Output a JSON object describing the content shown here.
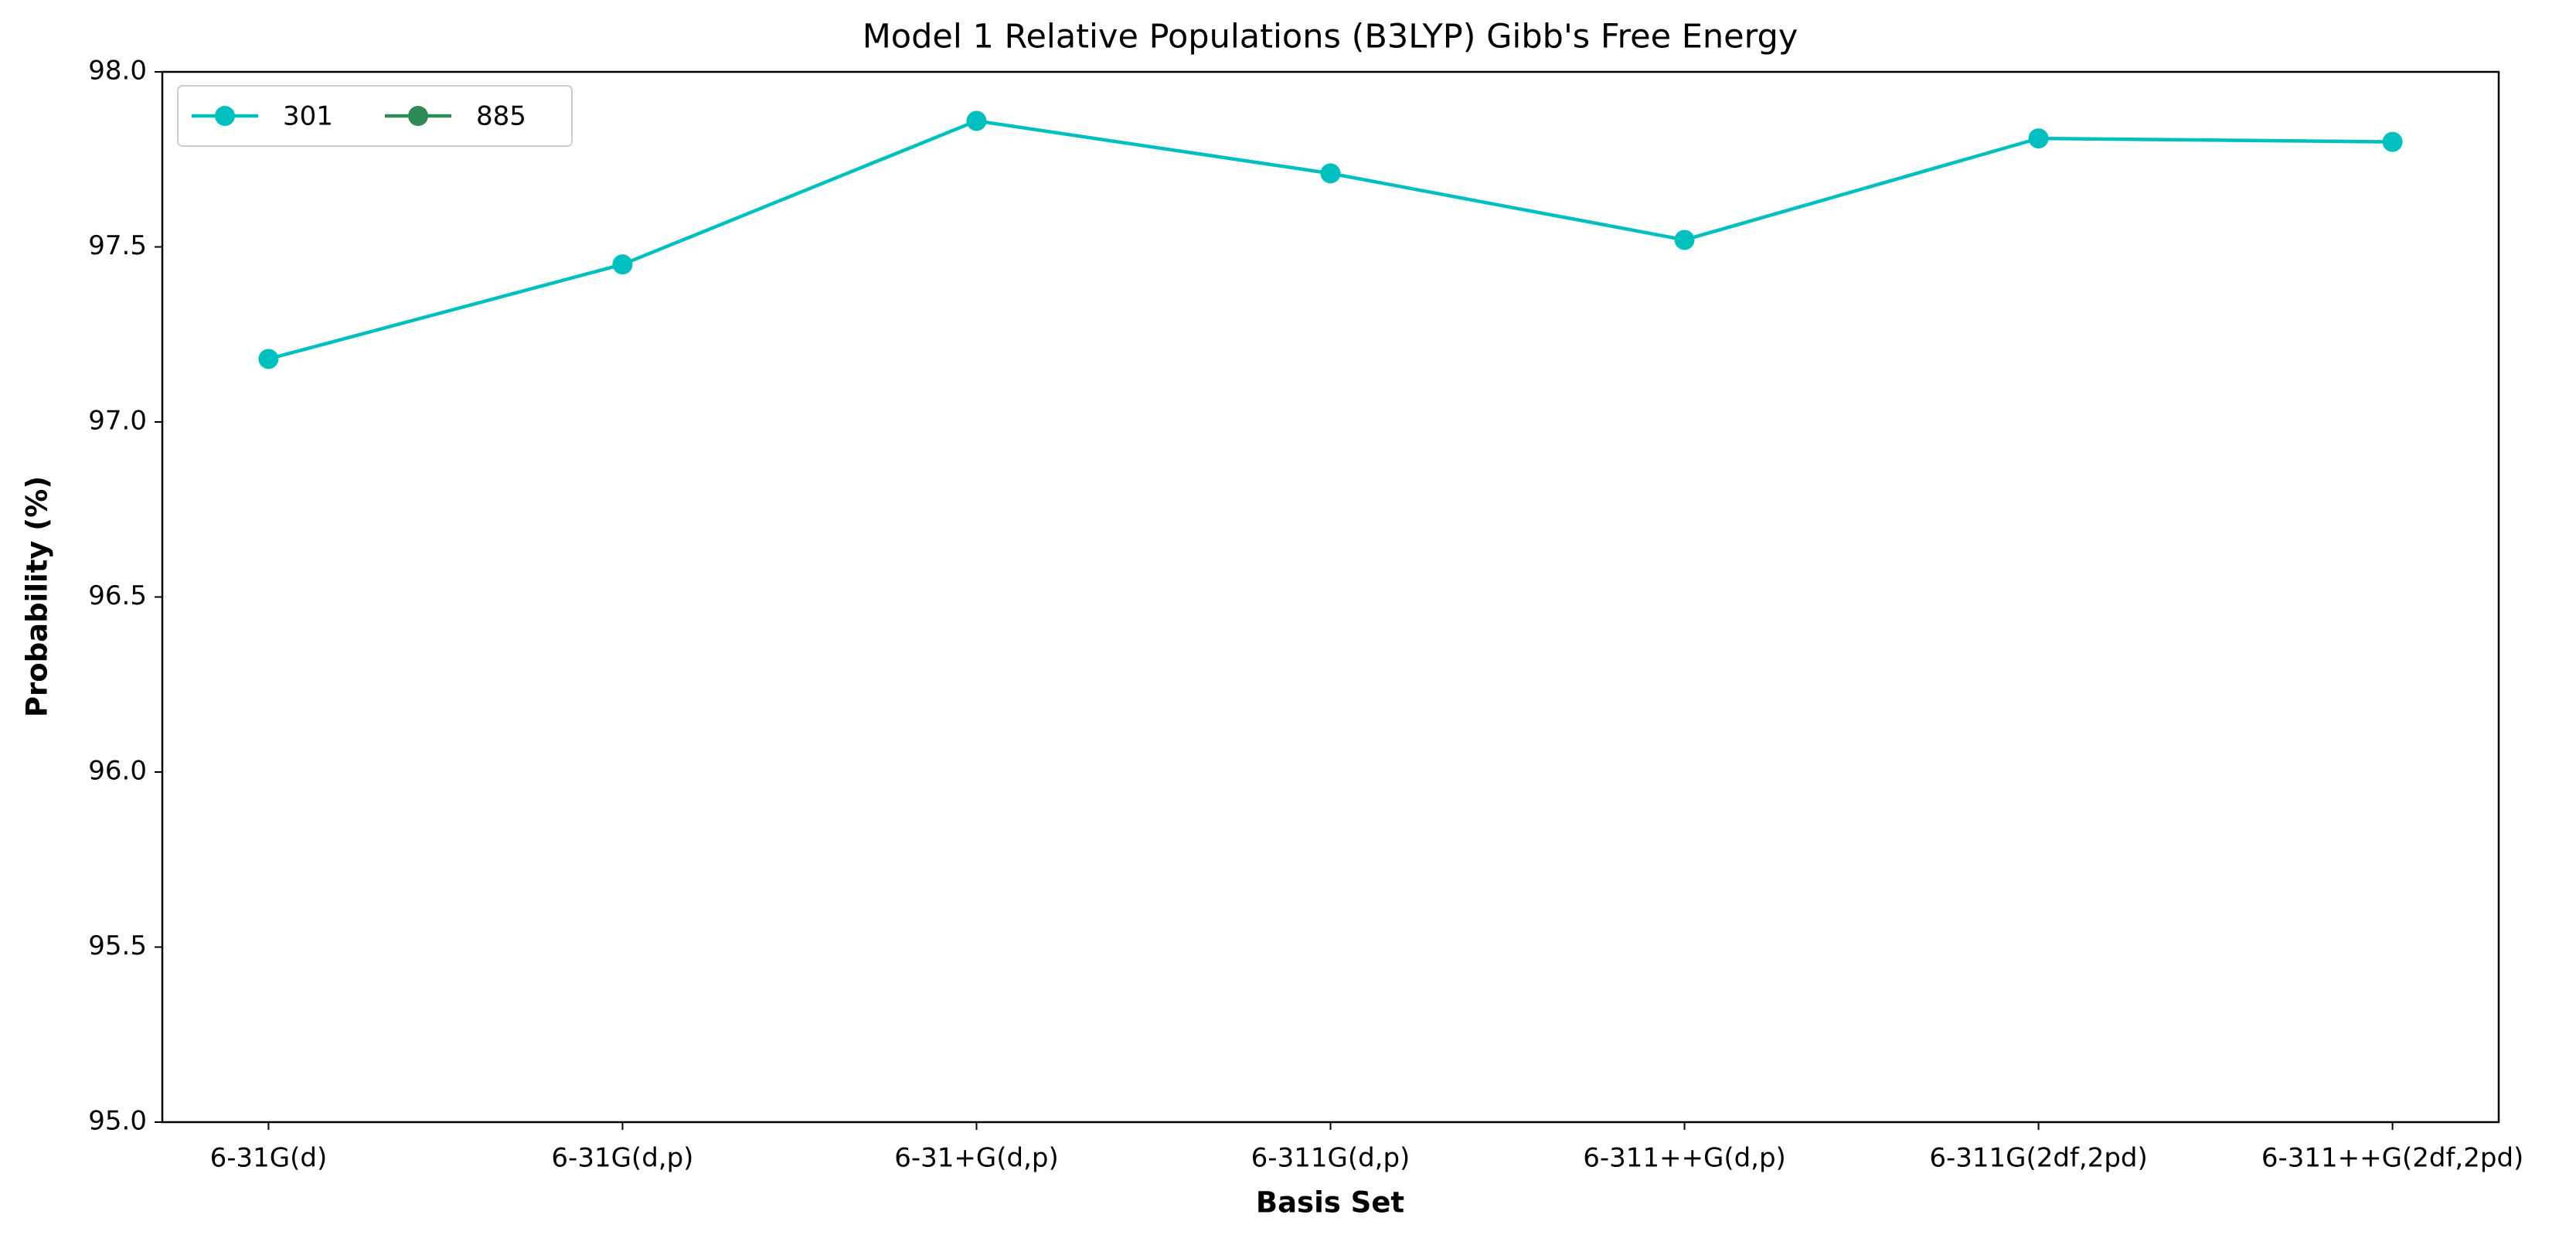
{
  "chart_data": {
    "type": "line",
    "title": "Model 1 Relative Populations (B3LYP) Gibb's Free Energy",
    "xlabel": "Basis Set",
    "ylabel": "Probability (%)",
    "categories": [
      "6-31G(d)",
      "6-31G(d,p)",
      "6-31+G(d,p)",
      "6-311G(d,p)",
      "6-311++G(d,p)",
      "6-311G(2df,2pd)",
      "6-311++G(2df,2pd)"
    ],
    "series": [
      {
        "name": "301",
        "color": "#00bfbf",
        "values": [
          97.18,
          97.45,
          97.86,
          97.71,
          97.52,
          97.81,
          97.8
        ]
      },
      {
        "name": "885",
        "color": "#2e8b57",
        "values": [
          null,
          null,
          null,
          null,
          null,
          null,
          null
        ]
      }
    ],
    "ylim": [
      95,
      98
    ],
    "yticks": [
      {
        "value": 95,
        "label": "95.0"
      },
      95.5,
      {
        "value": 96,
        "label": "96.0"
      },
      96.5,
      {
        "value": 97,
        "label": "97.0"
      },
      97.5,
      {
        "value": 98,
        "label": "98.0"
      }
    ],
    "legend": "upper left",
    "grid": false
  }
}
